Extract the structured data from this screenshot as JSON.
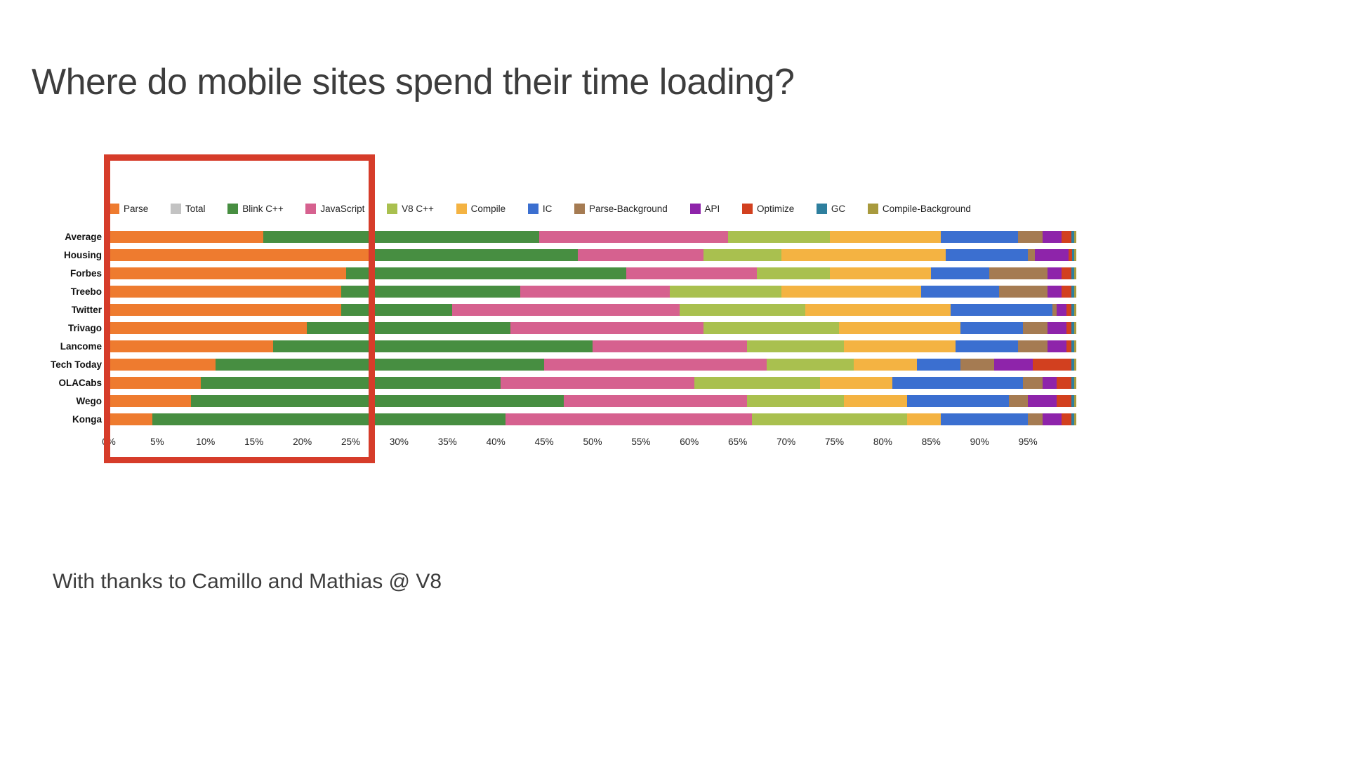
{
  "page": {
    "title": "Where do mobile sites spend their time loading?",
    "footer": "With thanks to Camillo and Mathias @ V8"
  },
  "chart_data": {
    "type": "bar",
    "orientation": "horizontal",
    "stacked": true,
    "unit": "%",
    "xlim": [
      0,
      100
    ],
    "grid": false,
    "legend_position": "top",
    "x_ticks": [
      "0%",
      "5%",
      "10%",
      "15%",
      "20%",
      "25%",
      "30%",
      "35%",
      "40%",
      "45%",
      "50%",
      "55%",
      "60%",
      "65%",
      "70%",
      "75%",
      "80%",
      "85%",
      "90%",
      "95%"
    ],
    "legend": [
      {
        "label": "Parse",
        "color": "#ee7b2f"
      },
      {
        "label": "Total",
        "color": "#c3c3c3"
      },
      {
        "label": "Blink C++",
        "color": "#478e41"
      },
      {
        "label": "JavaScript",
        "color": "#d6618f"
      },
      {
        "label": "V8 C++",
        "color": "#a9c04f"
      },
      {
        "label": "Compile",
        "color": "#f4b342"
      },
      {
        "label": "IC",
        "color": "#3b6fd0"
      },
      {
        "label": "Parse-Background",
        "color": "#a57b52"
      },
      {
        "label": "API",
        "color": "#8e24aa"
      },
      {
        "label": "Optimize",
        "color": "#d2401f"
      },
      {
        "label": "GC",
        "color": "#2e7f9e"
      },
      {
        "label": "Compile-Background",
        "color": "#a89a3d"
      }
    ],
    "series_keys": [
      "Parse",
      "Blink C++",
      "JavaScript",
      "V8 C++",
      "Compile",
      "IC",
      "Parse-Background",
      "API",
      "Optimize",
      "GC",
      "Compile-Background"
    ],
    "categories": [
      "Average",
      "Housing",
      "Forbes",
      "Treebo",
      "Twitter",
      "Trivago",
      "Lancome",
      "Tech Today",
      "OLACabs",
      "Wego",
      "Konga"
    ],
    "rows": [
      {
        "name": "Average",
        "values": [
          16.0,
          28.5,
          19.5,
          10.5,
          11.5,
          8.0,
          2.5,
          2.0,
          1.0,
          0.3,
          0.2
        ]
      },
      {
        "name": "Housing",
        "values": [
          27.5,
          21.0,
          13.0,
          8.0,
          17.0,
          8.5,
          0.7,
          3.5,
          0.4,
          0.2,
          0.2
        ]
      },
      {
        "name": "Forbes",
        "values": [
          24.5,
          29.0,
          13.5,
          7.5,
          10.5,
          6.0,
          6.0,
          1.5,
          1.0,
          0.3,
          0.2
        ]
      },
      {
        "name": "Treebo",
        "values": [
          24.0,
          18.5,
          15.5,
          11.5,
          14.5,
          8.0,
          5.0,
          1.5,
          1.0,
          0.3,
          0.2
        ]
      },
      {
        "name": "Twitter",
        "values": [
          24.0,
          11.5,
          23.5,
          13.0,
          15.0,
          10.5,
          0.5,
          1.0,
          0.5,
          0.3,
          0.2
        ]
      },
      {
        "name": "Trivago",
        "values": [
          20.5,
          21.0,
          20.0,
          14.0,
          12.5,
          6.5,
          2.5,
          2.0,
          0.5,
          0.3,
          0.2
        ]
      },
      {
        "name": "Lancome",
        "values": [
          17.0,
          33.0,
          16.0,
          10.0,
          11.5,
          6.5,
          3.0,
          2.0,
          0.5,
          0.3,
          0.2
        ]
      },
      {
        "name": "Tech Today",
        "values": [
          11.0,
          34.0,
          23.0,
          9.0,
          6.5,
          4.5,
          3.5,
          4.0,
          4.0,
          0.3,
          0.2
        ]
      },
      {
        "name": "OLACabs",
        "values": [
          9.5,
          31.0,
          20.0,
          13.0,
          7.5,
          13.5,
          2.0,
          1.5,
          1.5,
          0.3,
          0.2
        ]
      },
      {
        "name": "Wego",
        "values": [
          8.5,
          38.5,
          19.0,
          10.0,
          6.5,
          10.5,
          2.0,
          3.0,
          1.5,
          0.3,
          0.2
        ]
      },
      {
        "name": "Konga",
        "values": [
          4.5,
          36.5,
          25.5,
          16.0,
          3.5,
          9.0,
          1.5,
          2.0,
          1.0,
          0.3,
          0.2
        ]
      }
    ],
    "annotation": {
      "highlight_region_label": "red box over approximately 0% to 27% of the chart"
    }
  }
}
